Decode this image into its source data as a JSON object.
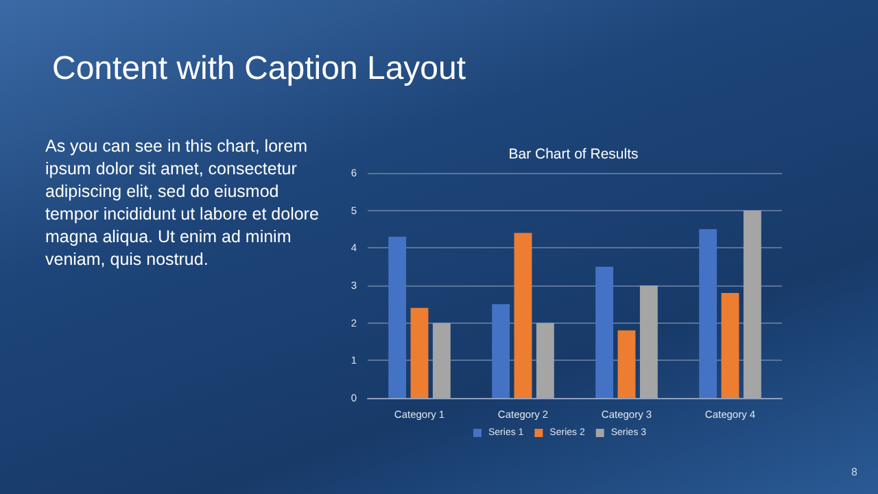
{
  "chart_data": {
    "type": "bar",
    "title": "Content with Caption Layout",
    "subtitle": "Bar Chart of Results",
    "annotations": [
      "As you can see in this chart, lorem ipsum dolor sit amet, consectetur adipiscing elit, sed do eiusmod tempor incididunt ut labore et dolore magna aliqua. Ut enim ad minim veniam, quis nostrud.",
      "8"
    ],
    "categories": [
      "Category 1",
      "Category 2",
      "Category 3",
      "Category 4"
    ],
    "series": [
      {
        "name": "Series 1",
        "color": "#4472c4",
        "values": [
          4.3,
          2.5,
          3.5,
          4.5
        ]
      },
      {
        "name": "Series 2",
        "color": "#ed7d31",
        "values": [
          2.4,
          4.4,
          1.8,
          2.8
        ]
      },
      {
        "name": "Series 3",
        "color": "#a5a5a5",
        "values": [
          2,
          2,
          3,
          5
        ]
      }
    ],
    "ylim": [
      0,
      6
    ],
    "yticks": [
      0,
      1,
      2,
      3,
      4,
      5,
      6
    ],
    "grid": "y",
    "legend": "bottom"
  }
}
